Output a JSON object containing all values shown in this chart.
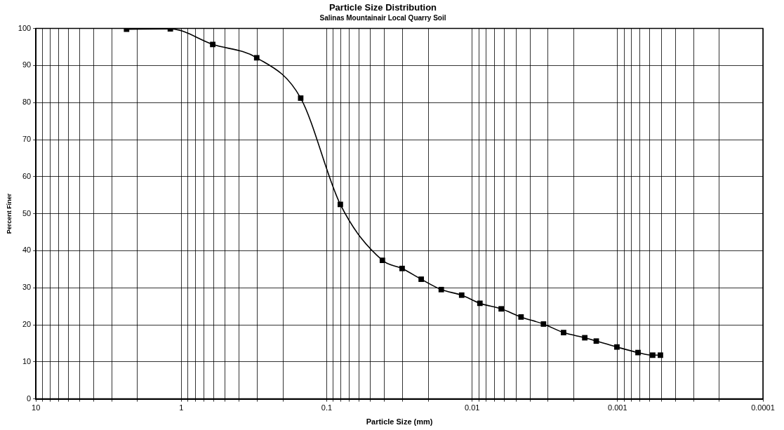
{
  "chart_data": {
    "type": "line",
    "title": "Particle Size Distribution",
    "subtitle": "Salinas Mountainair Local Quarry Soil",
    "xlabel": "Particle Size (mm)",
    "ylabel": "Percent Finer",
    "log": "x",
    "grid": true,
    "marker": "square",
    "line_style": "solid",
    "xlim": [
      10,
      0.0001
    ],
    "ylim": [
      0,
      100
    ],
    "xticks": [
      10,
      {
        "value": 9,
        "label": null
      },
      {
        "value": 8,
        "label": null
      },
      {
        "value": 7,
        "label": null
      },
      {
        "value": 6,
        "label": null
      },
      {
        "value": 5,
        "label": null
      },
      {
        "value": 4,
        "label": null
      },
      {
        "value": 3,
        "label": null
      },
      {
        "value": 2,
        "label": null
      },
      1,
      {
        "value": 0.9,
        "label": null
      },
      {
        "value": 0.8,
        "label": null
      },
      {
        "value": 0.7,
        "label": null
      },
      {
        "value": 0.6,
        "label": null
      },
      {
        "value": 0.5,
        "label": null
      },
      {
        "value": 0.4,
        "label": null
      },
      {
        "value": 0.3,
        "label": null
      },
      {
        "value": 0.2,
        "label": null
      },
      0.1,
      {
        "value": 0.09,
        "label": null
      },
      {
        "value": 0.08,
        "label": null
      },
      {
        "value": 0.07,
        "label": null
      },
      {
        "value": 0.06,
        "label": null
      },
      {
        "value": 0.05,
        "label": null
      },
      {
        "value": 0.04,
        "label": null
      },
      {
        "value": 0.03,
        "label": null
      },
      {
        "value": 0.02,
        "label": null
      },
      0.01,
      {
        "value": 0.009,
        "label": null
      },
      {
        "value": 0.008,
        "label": null
      },
      {
        "value": 0.007,
        "label": null
      },
      {
        "value": 0.006,
        "label": null
      },
      {
        "value": 0.005,
        "label": null
      },
      {
        "value": 0.004,
        "label": null
      },
      {
        "value": 0.003,
        "label": null
      },
      {
        "value": 0.002,
        "label": null
      },
      0.001,
      {
        "value": 0.0009,
        "label": null
      },
      {
        "value": 0.0008,
        "label": null
      },
      {
        "value": 0.0007,
        "label": null
      },
      {
        "value": 0.0006,
        "label": null
      },
      {
        "value": 0.0005,
        "label": null
      },
      {
        "value": 0.0004,
        "label": null
      },
      {
        "value": 0.0003,
        "label": null
      },
      {
        "value": 0.0002,
        "label": null
      },
      0.0001
    ],
    "yticks": [
      0,
      10,
      20,
      30,
      40,
      50,
      60,
      70,
      80,
      90,
      100
    ],
    "x": [
      2.38,
      1.19,
      0.608,
      0.303,
      0.151,
      0.0806,
      0.0414,
      0.0303,
      0.0224,
      0.0163,
      0.0118,
      0.00884,
      0.00631,
      0.00461,
      0.00323,
      0.00235,
      0.00168,
      0.0014,
      0.00101,
      0.000723,
      0.000573,
      0.000507
    ],
    "series": [
      {
        "color": "#000000",
        "values": [
          99.8,
          99.9,
          95.7,
          92.1,
          81.2,
          52.5,
          37.4,
          35.2,
          32.3,
          29.5,
          28.0,
          25.8,
          24.3,
          22.1,
          20.2,
          17.9,
          16.5,
          15.6,
          14.0,
          12.5,
          11.8,
          11.8
        ]
      }
    ]
  }
}
